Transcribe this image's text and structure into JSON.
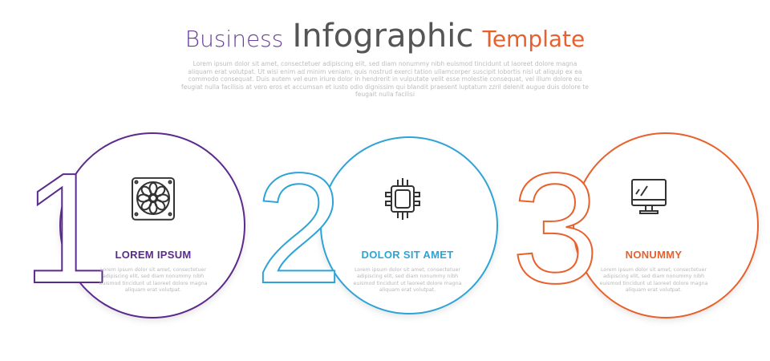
{
  "title": {
    "word1": "Business",
    "word2": "Infographic",
    "word3": "Template"
  },
  "intro": "Lorem ipsum dolor sit amet, consectetuer adipiscing elit, sed diam nonummy nibh euismod tincidunt ut laoreet dolore magna aliquam erat volutpat. Ut wisi enim ad minim veniam, quis nostrud exerci tation ullamcorper suscipit lobortis nisl ut aliquip ex ea commodo consequat. Duis autem vel eum iriure dolor in hendrerit in vulputate velit esse molestie consequat, vel illum dolore eu feugiat nulla facilisis at vero eros et accumsan et iusto odio dignissim qui blandit praesent luptatum zzril delenit augue duis dolore te feugait nulla facilisi",
  "colors": {
    "purple": "#5b2a8c",
    "blue": "#2ea3d6",
    "orange": "#e8602c",
    "icon": "#333333"
  },
  "steps": [
    {
      "number": "1",
      "heading": "LOREM IPSUM",
      "icon": "cooling-fan-icon",
      "body": "Lorem ipsum dolor sit amet, consectetuer adipiscing elit, sed diam nonummy nibh euismod tincidunt ut laoreet dolore magna aliquam erat volutpat."
    },
    {
      "number": "2",
      "heading": "DOLOR SIT AMET",
      "icon": "processor-chip-icon",
      "body": "Lorem ipsum dolor sit amet, consectetuer adipiscing elit, sed diam nonummy nibh euismod tincidunt ut laoreet dolore magna aliquam erat volutpat."
    },
    {
      "number": "3",
      "heading": "NONUMMY",
      "icon": "computer-monitor-icon",
      "body": "Lorem ipsum dolor sit amet, consectetuer adipiscing elit, sed diam nonummy nibh euismod tincidunt ut laoreet dolore magna aliquam erat volutpat."
    }
  ]
}
